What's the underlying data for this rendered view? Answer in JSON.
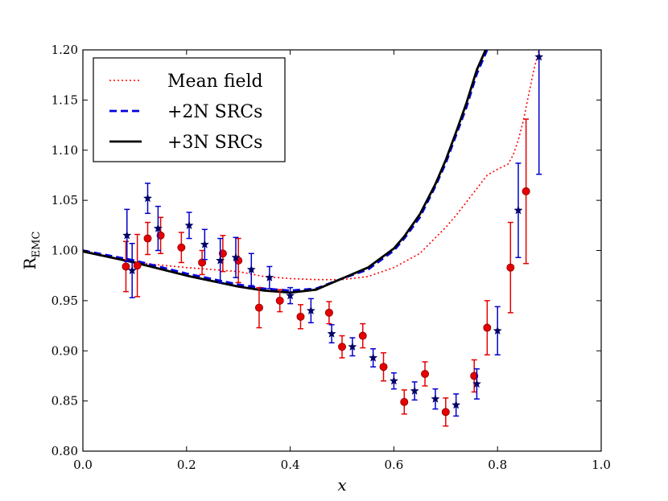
{
  "chart_data": {
    "type": "line",
    "title": "",
    "xlabel": "x",
    "ylabel": "R",
    "ylabel_sub": "EMC",
    "xlim": [
      0.0,
      1.0
    ],
    "ylim": [
      0.8,
      1.2
    ],
    "xticks": [
      0.0,
      0.2,
      0.4,
      0.6,
      0.8,
      1.0
    ],
    "xtick_labels": [
      "0.0",
      "0.2",
      "0.4",
      "0.6",
      "0.8",
      "1.0"
    ],
    "yticks": [
      0.8,
      0.85,
      0.9,
      0.95,
      1.0,
      1.05,
      1.1,
      1.15,
      1.2
    ],
    "ytick_labels": [
      "0.80",
      "0.85",
      "0.90",
      "0.95",
      "1.00",
      "1.05",
      "1.10",
      "1.15",
      "1.20"
    ],
    "legend_position": "top-left",
    "series": [
      {
        "name": "Mean field",
        "style": "dotted",
        "color": "#ff0000",
        "x": [
          0.0,
          0.1,
          0.2,
          0.3,
          0.35,
          0.4,
          0.45,
          0.5,
          0.55,
          0.6,
          0.65,
          0.7,
          0.72,
          0.75,
          0.78,
          0.8,
          0.82,
          0.83,
          0.84,
          0.85,
          0.86,
          0.87,
          0.88
        ],
        "y": [
          1.0,
          0.988,
          0.983,
          0.979,
          0.974,
          0.972,
          0.971,
          0.971,
          0.974,
          0.983,
          0.997,
          1.023,
          1.035,
          1.055,
          1.075,
          1.081,
          1.086,
          1.095,
          1.11,
          1.13,
          1.155,
          1.18,
          1.2
        ]
      },
      {
        "name": "+2N SRCs",
        "style": "dashed",
        "color": "#0000dd",
        "x": [
          0.0,
          0.1,
          0.2,
          0.3,
          0.35,
          0.4,
          0.45,
          0.5,
          0.55,
          0.6,
          0.62,
          0.65,
          0.68,
          0.7,
          0.72,
          0.74,
          0.76,
          0.78
        ],
        "y": [
          1.0,
          0.99,
          0.977,
          0.966,
          0.962,
          0.96,
          0.962,
          0.972,
          0.981,
          1.0,
          1.012,
          1.033,
          1.064,
          1.087,
          1.115,
          1.143,
          1.176,
          1.2
        ]
      },
      {
        "name": "+3N SRCs",
        "style": "solid",
        "color": "#000000",
        "x": [
          0.0,
          0.1,
          0.2,
          0.3,
          0.35,
          0.4,
          0.45,
          0.5,
          0.55,
          0.6,
          0.62,
          0.65,
          0.68,
          0.7,
          0.72,
          0.74,
          0.76,
          0.777
        ],
        "y": [
          0.999,
          0.988,
          0.975,
          0.964,
          0.96,
          0.958,
          0.961,
          0.972,
          0.983,
          1.002,
          1.014,
          1.036,
          1.066,
          1.09,
          1.118,
          1.147,
          1.18,
          1.2
        ]
      }
    ],
    "data_points": [
      {
        "name": "circles",
        "marker": "circle",
        "color": "#e50000",
        "edge_color": "#8b0000",
        "x": [
          0.083,
          0.105,
          0.125,
          0.15,
          0.19,
          0.23,
          0.27,
          0.3,
          0.34,
          0.38,
          0.42,
          0.475,
          0.5,
          0.54,
          0.58,
          0.62,
          0.66,
          0.7,
          0.755,
          0.78,
          0.825,
          0.855
        ],
        "y": [
          0.984,
          0.985,
          1.012,
          1.015,
          1.003,
          0.988,
          0.997,
          0.99,
          0.943,
          0.95,
          0.934,
          0.938,
          0.904,
          0.915,
          0.884,
          0.849,
          0.877,
          0.839,
          0.875,
          0.923,
          0.983,
          1.059
        ],
        "err": [
          0.025,
          0.031,
          0.016,
          0.018,
          0.015,
          0.012,
          0.018,
          0.022,
          0.02,
          0.011,
          0.012,
          0.011,
          0.011,
          0.012,
          0.014,
          0.012,
          0.012,
          0.014,
          0.016,
          0.027,
          0.045,
          0.072
        ]
      },
      {
        "name": "stars",
        "marker": "star",
        "color": "#000066",
        "err_color": "#0000cc",
        "x": [
          0.085,
          0.095,
          0.125,
          0.145,
          0.205,
          0.235,
          0.265,
          0.295,
          0.325,
          0.36,
          0.4,
          0.44,
          0.48,
          0.52,
          0.56,
          0.6,
          0.64,
          0.68,
          0.72,
          0.76,
          0.8,
          0.84,
          0.88
        ],
        "y": [
          1.015,
          0.98,
          1.052,
          1.022,
          1.025,
          1.006,
          0.99,
          0.993,
          0.981,
          0.973,
          0.955,
          0.94,
          0.917,
          0.904,
          0.893,
          0.87,
          0.86,
          0.852,
          0.846,
          0.867,
          0.92,
          1.04,
          1.193
        ],
        "err": [
          0.026,
          0.027,
          0.015,
          0.022,
          0.013,
          0.015,
          0.022,
          0.02,
          0.016,
          0.011,
          0.008,
          0.012,
          0.009,
          0.009,
          0.009,
          0.008,
          0.009,
          0.01,
          0.011,
          0.015,
          0.024,
          0.047,
          0.117
        ]
      }
    ]
  }
}
